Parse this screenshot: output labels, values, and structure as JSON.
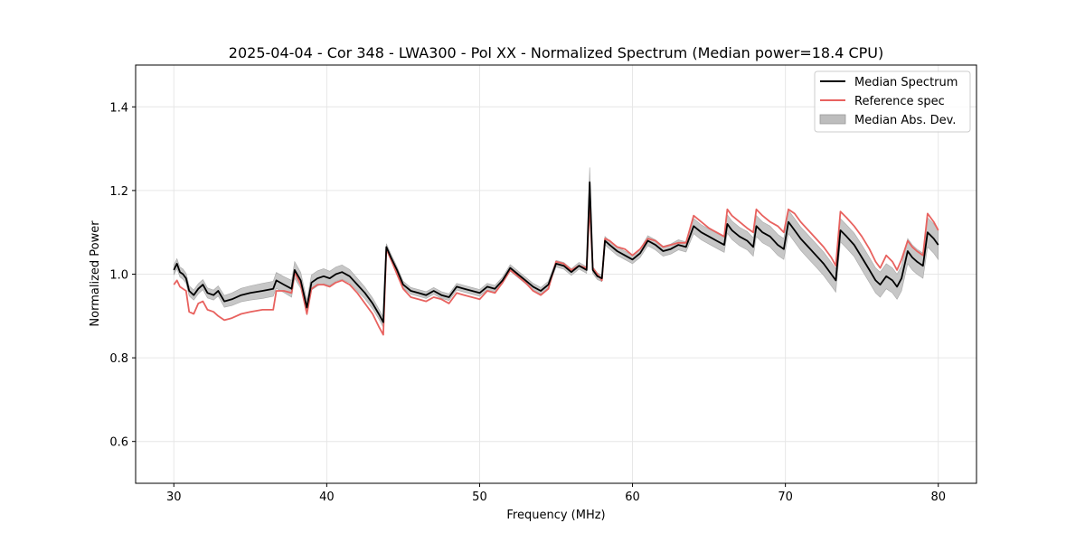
{
  "chart_data": {
    "type": "line",
    "title": "2025-04-04 - Cor 348 - LWA300 - Pol XX - Normalized Spectrum (Median power=18.4 CPU)",
    "xlabel": "Frequency (MHz)",
    "ylabel": "Normalized Power",
    "xlim": [
      27.5,
      82.5
    ],
    "ylim": [
      0.5,
      1.5
    ],
    "xticks": [
      30,
      40,
      50,
      60,
      70,
      80
    ],
    "yticks": [
      0.6,
      0.8,
      1.0,
      1.2,
      1.4
    ],
    "xtick_labels": [
      "30",
      "40",
      "50",
      "60",
      "70",
      "80"
    ],
    "ytick_labels": [
      "0.6",
      "0.8",
      "1.0",
      "1.2",
      "1.4"
    ],
    "grid": true,
    "legend_position": "top-right",
    "legend": [
      "Median Spectrum",
      "Reference spec",
      "Median Abs. Dev."
    ],
    "colors": {
      "median": "#000000",
      "reference": "#e8625f",
      "mad": "#bdbdbd"
    },
    "series": [
      {
        "name": "Median Spectrum",
        "x": [
          30.0,
          30.2,
          30.4,
          30.6,
          30.8,
          31.0,
          31.3,
          31.6,
          31.9,
          32.2,
          32.6,
          32.9,
          33.3,
          33.8,
          34.4,
          35.0,
          35.8,
          36.5,
          36.7,
          37.2,
          37.7,
          37.9,
          38.3,
          38.7,
          39.0,
          39.4,
          39.8,
          40.2,
          40.6,
          41.0,
          41.5,
          42.0,
          42.5,
          43.0,
          43.4,
          43.7,
          43.9,
          44.2,
          44.6,
          45.0,
          45.5,
          46.0,
          46.5,
          47.0,
          47.5,
          48.0,
          48.5,
          49.0,
          49.5,
          50.0,
          50.5,
          51.0,
          51.5,
          52.0,
          52.5,
          53.0,
          53.5,
          54.0,
          54.5,
          55.0,
          55.5,
          56.0,
          56.5,
          57.0,
          57.2,
          57.4,
          57.7,
          58.0,
          58.2,
          58.5,
          59.0,
          59.5,
          60.0,
          60.5,
          61.0,
          61.5,
          62.0,
          62.5,
          63.0,
          63.5,
          64.0,
          64.5,
          65.0,
          65.5,
          66.0,
          66.2,
          66.5,
          67.0,
          67.5,
          67.9,
          68.1,
          68.5,
          69.0,
          69.5,
          69.9,
          70.2,
          70.6,
          71.0,
          71.5,
          72.0,
          72.5,
          73.0,
          73.3,
          73.6,
          74.0,
          74.5,
          75.0,
          75.5,
          75.9,
          76.2,
          76.6,
          77.0,
          77.3,
          77.6,
          78.0,
          78.3,
          78.6,
          79.0,
          79.3,
          79.7,
          80.0
        ],
        "y": [
          1.01,
          1.025,
          1.005,
          1.0,
          0.99,
          0.96,
          0.95,
          0.965,
          0.975,
          0.955,
          0.95,
          0.96,
          0.935,
          0.94,
          0.95,
          0.955,
          0.96,
          0.965,
          0.985,
          0.975,
          0.965,
          1.01,
          0.985,
          0.92,
          0.98,
          0.99,
          0.995,
          0.99,
          1.0,
          1.005,
          0.995,
          0.975,
          0.955,
          0.93,
          0.905,
          0.885,
          1.065,
          1.04,
          1.01,
          0.975,
          0.96,
          0.955,
          0.95,
          0.96,
          0.95,
          0.945,
          0.97,
          0.965,
          0.96,
          0.955,
          0.97,
          0.965,
          0.985,
          1.015,
          1.0,
          0.985,
          0.97,
          0.96,
          0.975,
          1.025,
          1.02,
          1.005,
          1.02,
          1.01,
          1.22,
          1.01,
          0.995,
          0.99,
          1.08,
          1.07,
          1.055,
          1.045,
          1.035,
          1.05,
          1.08,
          1.07,
          1.055,
          1.06,
          1.07,
          1.065,
          1.115,
          1.1,
          1.09,
          1.08,
          1.07,
          1.12,
          1.105,
          1.09,
          1.08,
          1.065,
          1.115,
          1.1,
          1.09,
          1.07,
          1.06,
          1.125,
          1.105,
          1.085,
          1.065,
          1.045,
          1.025,
          1.0,
          0.985,
          1.105,
          1.09,
          1.07,
          1.04,
          1.01,
          0.985,
          0.975,
          0.995,
          0.985,
          0.97,
          0.99,
          1.055,
          1.04,
          1.03,
          1.02,
          1.1,
          1.085,
          1.07
        ]
      },
      {
        "name": "Reference spec",
        "x": [
          30.0,
          30.2,
          30.4,
          30.6,
          30.8,
          31.0,
          31.3,
          31.6,
          31.9,
          32.2,
          32.6,
          32.9,
          33.3,
          33.8,
          34.4,
          35.0,
          35.8,
          36.5,
          36.7,
          37.2,
          37.7,
          37.9,
          38.3,
          38.7,
          39.0,
          39.4,
          39.8,
          40.2,
          40.6,
          41.0,
          41.5,
          42.0,
          42.5,
          43.0,
          43.4,
          43.7,
          43.9,
          44.2,
          44.6,
          45.0,
          45.5,
          46.0,
          46.5,
          47.0,
          47.5,
          48.0,
          48.5,
          49.0,
          49.5,
          50.0,
          50.5,
          51.0,
          51.5,
          52.0,
          52.5,
          53.0,
          53.5,
          54.0,
          54.5,
          55.0,
          55.5,
          56.0,
          56.5,
          57.0,
          57.2,
          57.4,
          57.7,
          58.0,
          58.2,
          58.5,
          59.0,
          59.5,
          60.0,
          60.5,
          61.0,
          61.5,
          62.0,
          62.5,
          63.0,
          63.5,
          64.0,
          64.5,
          65.0,
          65.5,
          66.0,
          66.2,
          66.5,
          67.0,
          67.5,
          67.9,
          68.1,
          68.5,
          69.0,
          69.5,
          69.9,
          70.2,
          70.6,
          71.0,
          71.5,
          72.0,
          72.5,
          73.0,
          73.3,
          73.6,
          74.0,
          74.5,
          75.0,
          75.5,
          75.9,
          76.2,
          76.6,
          77.0,
          77.3,
          77.6,
          78.0,
          78.3,
          78.6,
          79.0,
          79.3,
          79.7,
          80.0
        ],
        "y": [
          0.975,
          0.985,
          0.97,
          0.965,
          0.96,
          0.91,
          0.905,
          0.93,
          0.935,
          0.915,
          0.91,
          0.9,
          0.89,
          0.895,
          0.905,
          0.91,
          0.915,
          0.915,
          0.96,
          0.96,
          0.955,
          1.005,
          0.975,
          0.905,
          0.965,
          0.975,
          0.975,
          0.97,
          0.98,
          0.985,
          0.975,
          0.955,
          0.93,
          0.905,
          0.875,
          0.855,
          1.06,
          1.035,
          1.0,
          0.965,
          0.945,
          0.94,
          0.935,
          0.945,
          0.94,
          0.93,
          0.955,
          0.95,
          0.945,
          0.94,
          0.96,
          0.955,
          0.98,
          1.01,
          0.995,
          0.98,
          0.96,
          0.95,
          0.965,
          1.03,
          1.025,
          1.01,
          1.02,
          1.015,
          1.165,
          1.015,
          1.0,
          0.985,
          1.085,
          1.08,
          1.065,
          1.06,
          1.045,
          1.06,
          1.085,
          1.08,
          1.065,
          1.07,
          1.075,
          1.075,
          1.14,
          1.125,
          1.11,
          1.1,
          1.09,
          1.155,
          1.14,
          1.125,
          1.11,
          1.1,
          1.155,
          1.14,
          1.125,
          1.115,
          1.1,
          1.155,
          1.145,
          1.125,
          1.105,
          1.085,
          1.065,
          1.04,
          1.02,
          1.15,
          1.135,
          1.115,
          1.09,
          1.06,
          1.03,
          1.015,
          1.045,
          1.03,
          1.01,
          1.035,
          1.08,
          1.065,
          1.055,
          1.045,
          1.145,
          1.125,
          1.105
        ]
      },
      {
        "name": "Median Abs. Dev.",
        "half_width": [
          0.012,
          0.012,
          0.012,
          0.012,
          0.012,
          0.012,
          0.012,
          0.012,
          0.012,
          0.012,
          0.012,
          0.012,
          0.014,
          0.015,
          0.016,
          0.017,
          0.018,
          0.018,
          0.019,
          0.019,
          0.02,
          0.02,
          0.019,
          0.018,
          0.018,
          0.018,
          0.018,
          0.017,
          0.017,
          0.017,
          0.016,
          0.015,
          0.014,
          0.013,
          0.012,
          0.012,
          0.008,
          0.008,
          0.008,
          0.008,
          0.008,
          0.008,
          0.008,
          0.008,
          0.008,
          0.008,
          0.008,
          0.008,
          0.008,
          0.008,
          0.008,
          0.008,
          0.008,
          0.008,
          0.008,
          0.008,
          0.008,
          0.008,
          0.008,
          0.008,
          0.008,
          0.008,
          0.008,
          0.008,
          0.035,
          0.008,
          0.008,
          0.008,
          0.01,
          0.01,
          0.01,
          0.01,
          0.01,
          0.01,
          0.012,
          0.012,
          0.012,
          0.012,
          0.012,
          0.012,
          0.018,
          0.018,
          0.018,
          0.018,
          0.018,
          0.022,
          0.022,
          0.022,
          0.022,
          0.022,
          0.025,
          0.025,
          0.025,
          0.025,
          0.025,
          0.028,
          0.028,
          0.028,
          0.028,
          0.028,
          0.028,
          0.028,
          0.028,
          0.028,
          0.028,
          0.028,
          0.03,
          0.03,
          0.03,
          0.03,
          0.03,
          0.03,
          0.03,
          0.03,
          0.03,
          0.03,
          0.03,
          0.03,
          0.035,
          0.035,
          0.035
        ]
      }
    ]
  }
}
